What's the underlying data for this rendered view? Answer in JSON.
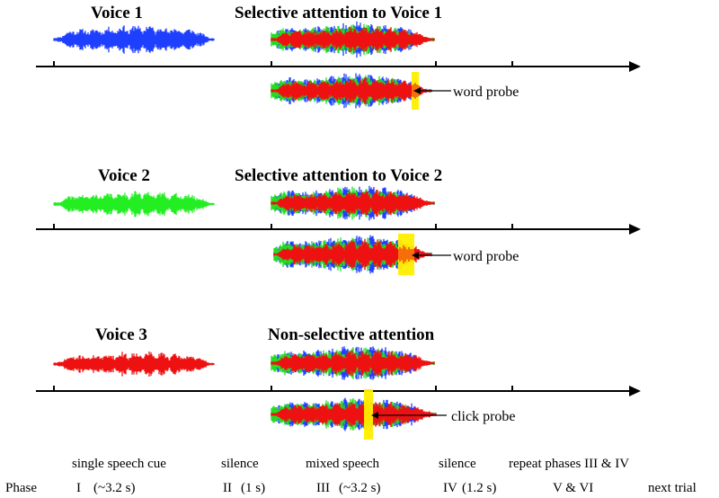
{
  "colors": {
    "voice1": "#1f3fff",
    "voice2": "#22ee22",
    "voice3": "#ee1111",
    "mixed_blue": "#1f3fff",
    "mixed_green": "#22dd22",
    "mixed_red": "#ee1111",
    "probe": "#ffee00",
    "axis": "#000000"
  },
  "panels": [
    {
      "voice_label": "Voice 1",
      "voice_color": "#1f3fff",
      "attention_label": "Selective attention to Voice 1",
      "probe_label": "word probe"
    },
    {
      "voice_label": "Voice 2",
      "voice_color": "#22ee22",
      "attention_label": "Selective attention to Voice 2",
      "probe_label": "word probe"
    },
    {
      "voice_label": "Voice 3",
      "voice_color": "#ee1111",
      "attention_label": "Non-selective attention",
      "probe_label": "click probe"
    }
  ],
  "phase_row": {
    "row_label": "Phase",
    "phases": [
      {
        "desc": "single speech cue",
        "numeral": "I",
        "duration": "(~3.2 s)"
      },
      {
        "desc": "silence",
        "numeral": "II",
        "duration": "(1 s)"
      },
      {
        "desc": "mixed speech",
        "numeral": "III",
        "duration": "(~3.2 s)"
      },
      {
        "desc": "silence",
        "numeral": "IV",
        "duration": "(1.2 s)"
      },
      {
        "desc": "repeat phases III & IV",
        "numeral": "V & VI",
        "duration": ""
      }
    ],
    "next": "next trial"
  }
}
